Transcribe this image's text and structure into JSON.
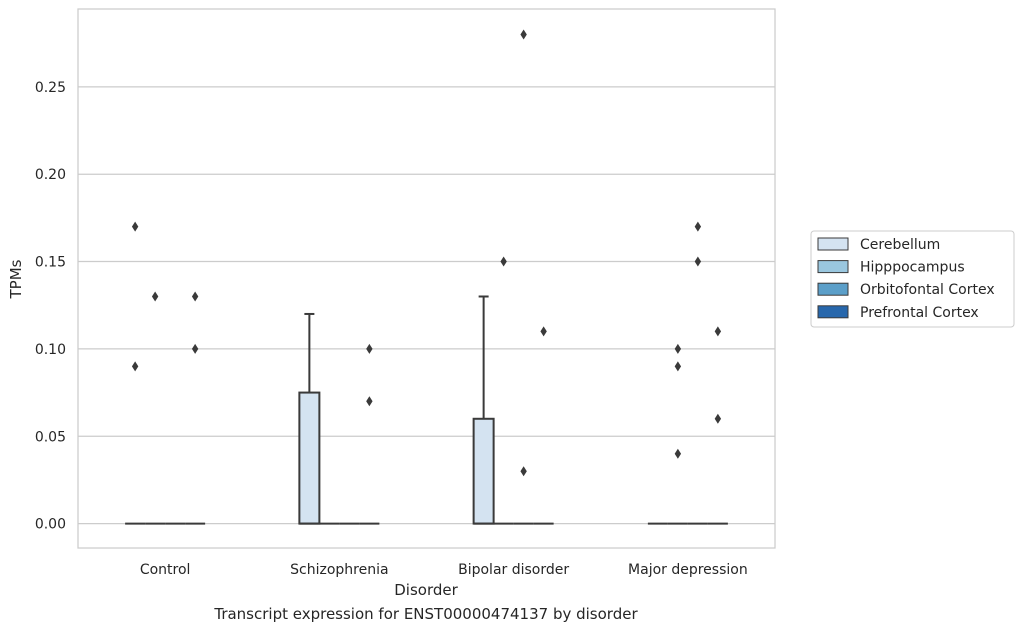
{
  "caption": "Transcript expression for ENST00000474137 by disorder",
  "colors": {
    "Cerebellum": "#d4e3f1",
    "Hipppocampus": "#9ac7df",
    "Orbitofontal Cortex": "#5b9fc9",
    "Prefrontal Cortex": "#2767ac",
    "box_line": "#3a3a3a",
    "grid": "#cccccc",
    "frame": "#cccccc"
  },
  "chart_data": {
    "type": "box",
    "title": "",
    "xlabel": "Disorder",
    "ylabel": "TPMs",
    "ylim": [
      -0.0135,
      0.294
    ],
    "yticks": [
      "0.00",
      "0.05",
      "0.10",
      "0.15",
      "0.20",
      "0.25"
    ],
    "ytick_values": [
      0.0,
      0.05,
      0.1,
      0.15,
      0.2,
      0.25
    ],
    "categories": [
      "Control",
      "Schizophrenia",
      "Bipolar disorder",
      "Major depression"
    ],
    "grid": true,
    "legend_position": "right",
    "series": [
      {
        "name": "Cerebellum",
        "boxes": [
          {
            "category": "Control",
            "q1": 0,
            "median": 0,
            "q3": 0,
            "whisker_low": 0,
            "whisker_high": 0,
            "outliers": [
              0.17,
              0.09
            ]
          },
          {
            "category": "Schizophrenia",
            "q1": 0,
            "median": 0,
            "q3": 0.075,
            "whisker_low": 0,
            "whisker_high": 0.12,
            "outliers": []
          },
          {
            "category": "Bipolar disorder",
            "q1": 0,
            "median": 0,
            "q3": 0.06,
            "whisker_low": 0,
            "whisker_high": 0.13,
            "outliers": []
          },
          {
            "category": "Major depression",
            "q1": 0,
            "median": 0,
            "q3": 0,
            "whisker_low": 0,
            "whisker_high": 0,
            "outliers": []
          }
        ]
      },
      {
        "name": "Hipppocampus",
        "boxes": [
          {
            "category": "Control",
            "q1": 0,
            "median": 0,
            "q3": 0,
            "whisker_low": 0,
            "whisker_high": 0,
            "outliers": [
              0.13
            ]
          },
          {
            "category": "Schizophrenia",
            "q1": 0,
            "median": 0,
            "q3": 0,
            "whisker_low": 0,
            "whisker_high": 0,
            "outliers": []
          },
          {
            "category": "Bipolar disorder",
            "q1": 0,
            "median": 0,
            "q3": 0,
            "whisker_low": 0,
            "whisker_high": 0,
            "outliers": [
              0.15
            ]
          },
          {
            "category": "Major depression",
            "q1": 0,
            "median": 0,
            "q3": 0,
            "whisker_low": 0,
            "whisker_high": 0,
            "outliers": [
              0.1,
              0.09,
              0.04
            ]
          }
        ]
      },
      {
        "name": "Orbitofontal Cortex",
        "boxes": [
          {
            "category": "Control",
            "q1": 0,
            "median": 0,
            "q3": 0,
            "whisker_low": 0,
            "whisker_high": 0,
            "outliers": []
          },
          {
            "category": "Schizophrenia",
            "q1": 0,
            "median": 0,
            "q3": 0,
            "whisker_low": 0,
            "whisker_high": 0,
            "outliers": []
          },
          {
            "category": "Bipolar disorder",
            "q1": 0,
            "median": 0,
            "q3": 0,
            "whisker_low": 0,
            "whisker_high": 0,
            "outliers": [
              0.28,
              0.03
            ]
          },
          {
            "category": "Major depression",
            "q1": 0,
            "median": 0,
            "q3": 0,
            "whisker_low": 0,
            "whisker_high": 0,
            "outliers": [
              0.17,
              0.15
            ]
          }
        ]
      },
      {
        "name": "Prefrontal Cortex",
        "boxes": [
          {
            "category": "Control",
            "q1": 0,
            "median": 0,
            "q3": 0,
            "whisker_low": 0,
            "whisker_high": 0,
            "outliers": [
              0.13,
              0.1
            ]
          },
          {
            "category": "Schizophrenia",
            "q1": 0,
            "median": 0,
            "q3": 0,
            "whisker_low": 0,
            "whisker_high": 0,
            "outliers": [
              0.1,
              0.07
            ]
          },
          {
            "category": "Bipolar disorder",
            "q1": 0,
            "median": 0,
            "q3": 0,
            "whisker_low": 0,
            "whisker_high": 0,
            "outliers": [
              0.11
            ]
          },
          {
            "category": "Major depression",
            "q1": 0,
            "median": 0,
            "q3": 0,
            "whisker_low": 0,
            "whisker_high": 0,
            "outliers": [
              0.11,
              0.06
            ]
          }
        ]
      }
    ]
  }
}
